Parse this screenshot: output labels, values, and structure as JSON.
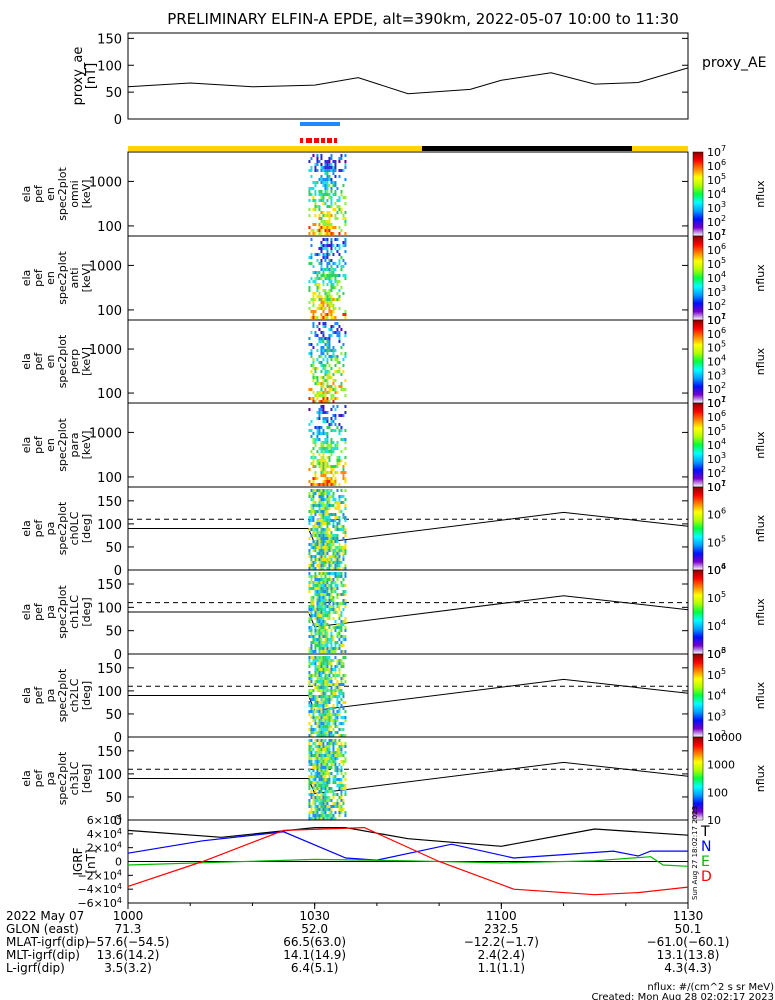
{
  "title": "PRELIMINARY ELFIN-A EPDE, alt=390km, 2022-05-07 10:00 to 11:30",
  "chart_data": [
    {
      "type": "line",
      "name": "proxy_ae",
      "ylabel_lines": [
        "proxy_ae",
        "[nT]"
      ],
      "legend": "proxy_AE",
      "ylim": [
        0,
        160
      ],
      "yticks": [
        "150",
        "100",
        "50",
        "0"
      ],
      "x_minutes": [
        0,
        10,
        20,
        30,
        37,
        45,
        55,
        60,
        68,
        75,
        82,
        90
      ],
      "values": [
        60,
        67,
        60,
        63,
        77,
        47,
        55,
        72,
        86,
        65,
        68,
        95
      ]
    },
    {
      "type": "heatmap",
      "panels": [
        {
          "label": [
            "ela",
            "pef",
            "en",
            "spec2plot",
            "omni",
            "[keV]"
          ],
          "yticks": [
            "1000",
            "100"
          ]
        },
        {
          "label": [
            "ela",
            "pef",
            "en",
            "spec2plot",
            "anti",
            "[keV]"
          ],
          "yticks": [
            "1000",
            "100"
          ]
        },
        {
          "label": [
            "ela",
            "pef",
            "en",
            "spec2plot",
            "perp",
            "[keV]"
          ],
          "yticks": [
            "1000",
            "100"
          ]
        },
        {
          "label": [
            "ela",
            "pef",
            "en",
            "spec2plot",
            "para",
            "[keV]"
          ],
          "yticks": [
            "1000",
            "100"
          ]
        },
        {
          "label": [
            "ela",
            "pef",
            "pa",
            "spec2plot",
            "ch0LC",
            "[deg]"
          ],
          "yticks": [
            "150",
            "100",
            "50",
            "0"
          ]
        },
        {
          "label": [
            "ela",
            "pef",
            "pa",
            "spec2plot",
            "ch1LC",
            "[deg]"
          ],
          "yticks": [
            "150",
            "100",
            "50",
            "0"
          ]
        },
        {
          "label": [
            "ela",
            "pef",
            "pa",
            "spec2plot",
            "ch2LC",
            "[deg]"
          ],
          "yticks": [
            "150",
            "100",
            "50",
            "0"
          ]
        },
        {
          "label": [
            "ela",
            "pef",
            "pa",
            "spec2plot",
            "ch3LC",
            "[deg]"
          ],
          "yticks": [
            "150",
            "100",
            "50",
            "0"
          ]
        }
      ],
      "data_time_range_min": [
        29,
        35
      ],
      "colorbars": [
        {
          "label": "nflux",
          "ticks": [
            "10",
            "10",
            "10",
            "10",
            "10",
            "10",
            "10"
          ],
          "exps": [
            "7",
            "6",
            "5",
            "4",
            "3",
            "2",
            "1"
          ]
        },
        {
          "label": "nflux",
          "ticks": [
            "10",
            "10",
            "10",
            "10",
            "10",
            "10",
            "10"
          ],
          "exps": [
            "7",
            "6",
            "5",
            "4",
            "3",
            "2",
            "1"
          ]
        },
        {
          "label": "nflux",
          "ticks": [
            "10",
            "10",
            "10",
            "10",
            "10",
            "10",
            "10"
          ],
          "exps": [
            "7",
            "6",
            "5",
            "4",
            "3",
            "2",
            "1"
          ]
        },
        {
          "label": "nflux",
          "ticks": [
            "10",
            "10",
            "10",
            "10",
            "10",
            "10",
            "10"
          ],
          "exps": [
            "7",
            "6",
            "5",
            "4",
            "3",
            "2",
            "1"
          ]
        },
        {
          "label": "nflux",
          "ticks": [
            "10",
            "10",
            "10",
            "10"
          ],
          "exps": [
            "7",
            "6",
            "5",
            "4"
          ]
        },
        {
          "label": "nflux",
          "ticks": [
            "10",
            "10",
            "10",
            "10"
          ],
          "exps": [
            "6",
            "5",
            "4",
            "3"
          ]
        },
        {
          "label": "nflux",
          "ticks": [
            "10",
            "10",
            "10",
            "10",
            "10"
          ],
          "exps": [
            "6",
            "5",
            "4",
            "3",
            "2"
          ]
        },
        {
          "label": "nflux",
          "ticks": [
            "10000",
            "1000",
            "100",
            "10"
          ],
          "exps": [
            "",
            "",
            "",
            ""
          ]
        }
      ],
      "lc_lines_deg": {
        "solid": 90,
        "dashed": 110
      }
    },
    {
      "type": "line",
      "name": "IGRF",
      "ylabel_lines": [
        "IGRF",
        "[nT]"
      ],
      "ylim": [
        -60000,
        60000
      ],
      "yticks": [
        {
          "m": "6",
          "e": "4",
          "s": ""
        },
        {
          "m": "4",
          "e": "4",
          "s": ""
        },
        {
          "m": "2",
          "e": "4",
          "s": ""
        },
        {
          "m": "0",
          "e": "",
          "s": ""
        },
        {
          "m": "2",
          "e": "4",
          "s": "−"
        },
        {
          "m": "4",
          "e": "4",
          "s": "−"
        },
        {
          "m": "6",
          "e": "4",
          "s": "−"
        }
      ],
      "series": [
        {
          "name": "T",
          "color": "#000000",
          "x_minutes": [
            0,
            15,
            30,
            35,
            45,
            60,
            75,
            90
          ],
          "values": [
            45000,
            35000,
            49000,
            49000,
            33000,
            22000,
            47000,
            38000
          ]
        },
        {
          "name": "N",
          "color": "#0000ff",
          "x_minutes": [
            0,
            12,
            25,
            35,
            40,
            52,
            62,
            70,
            78,
            82,
            84,
            90
          ],
          "values": [
            12000,
            30000,
            43000,
            5000,
            2000,
            25000,
            5000,
            10000,
            15000,
            8000,
            15000,
            15000
          ]
        },
        {
          "name": "E",
          "color": "#00bb00",
          "x_minutes": [
            0,
            30,
            45,
            60,
            75,
            84,
            86,
            90
          ],
          "values": [
            -5000,
            3000,
            1000,
            -2000,
            1000,
            7000,
            -5000,
            -7000
          ]
        },
        {
          "name": "D",
          "color": "#ff0000",
          "x_minutes": [
            0,
            12,
            25,
            38,
            50,
            62,
            75,
            82,
            90
          ],
          "values": [
            -36000,
            0,
            45000,
            49000,
            0,
            -40000,
            -48000,
            -45000,
            -37000
          ]
        }
      ]
    }
  ],
  "xaxis": {
    "row_labels": [
      "2022 May 07",
      "GLON (east)",
      "MLAT-igrf(dip)",
      "MLT-igrf(dip)",
      "L-igrf(dip)"
    ],
    "ticks": [
      {
        "t": "1000",
        "glon": "71.3",
        "mlat": "−57.6(−54.5)",
        "mlt": "13.6(14.2)",
        "l": "3.5(3.2)"
      },
      {
        "t": "1030",
        "glon": "52.0",
        "mlat": "66.5(63.0)",
        "mlt": "14.1(14.9)",
        "l": "6.4(5.1)"
      },
      {
        "t": "1100",
        "glon": "232.5",
        "mlat": "−12.2(−1.7)",
        "mlt": "2.4(2.4)",
        "l": "1.1(1.1)"
      },
      {
        "t": "1130",
        "glon": "50.1",
        "mlat": "−61.0(−60.1)",
        "mlt": "13.1(13.8)",
        "l": "4.3(4.3)"
      }
    ]
  },
  "footer": {
    "units": "nflux: #/(cm^2 s sr MeV)",
    "created": "Created: Mon Aug 28 02:02:17 2023",
    "sidestamp": "Sun Aug 27 18:02:17 2023"
  },
  "colors": {
    "sunlight": "#ffd400",
    "eclipse": "#000000",
    "science_blue": "#1e88ff",
    "science_red": "#ff0000"
  }
}
